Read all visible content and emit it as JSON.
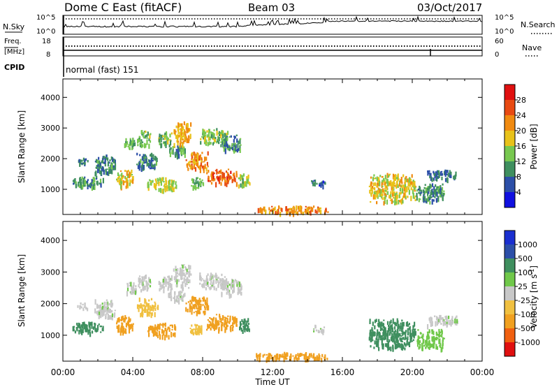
{
  "header": {
    "station": "Dome C East (fitACF)",
    "beam": "Beam 03",
    "date": "03/Oct/2017"
  },
  "top_panels": {
    "nsky_label": "N.Sky",
    "nsky_top": "10^5",
    "nsky_bottom": "10^0",
    "nsearch_label": "N.Search",
    "nsearch_top": "10^5",
    "nsearch_bottom": "10^0",
    "freq_label": "Freq.",
    "freq_unit": "[MHz]",
    "freq_top": "18",
    "freq_bottom": "8",
    "nave_label": "Nave",
    "nave_top": "60",
    "nave_bottom": "0",
    "cpid_label": "CPID",
    "cpid_value": "normal (fast) 151"
  },
  "colors": {
    "power": [
      "#1010e0",
      "#2c4fa8",
      "#3f8f5f",
      "#78c850",
      "#e8c21a",
      "#f08a10",
      "#e84a12",
      "#e01010"
    ],
    "velocity": [
      "#e01010",
      "#f06010",
      "#f0a020",
      "#f0c040",
      "#c8c8c8",
      "#70c84a",
      "#3f8f5f",
      "#2c4fa8",
      "#1a2fd0"
    ]
  },
  "chart_data": [
    {
      "type": "heatmap",
      "title": "",
      "xlabel": "",
      "ylabel": "Slant Range [km]",
      "xlim": [
        "00:00",
        "00:00"
      ],
      "xticks": [
        "00:00",
        "04:00",
        "08:00",
        "12:00",
        "16:00",
        "20:00",
        "00:00"
      ],
      "ylim": [
        180,
        4600
      ],
      "yticks": [
        1000,
        2000,
        3000,
        4000
      ],
      "colorbar": {
        "label": "Power [dB]",
        "ticks": [
          "4",
          "8",
          "12",
          "16",
          "20",
          "24",
          "28"
        ],
        "range": [
          0,
          32
        ]
      },
      "patches": [
        {
          "t": [
            0.8,
            1.4
          ],
          "r": [
            1850,
            2050
          ],
          "v": 7
        },
        {
          "t": [
            0.5,
            2.3
          ],
          "r": [
            1100,
            1450
          ],
          "v": 10
        },
        {
          "t": [
            1.8,
            3.0
          ],
          "r": [
            1550,
            2150
          ],
          "v": 9
        },
        {
          "t": [
            3.0,
            4.0
          ],
          "r": [
            1100,
            1650
          ],
          "v": 18
        },
        {
          "t": [
            3.5,
            4.2
          ],
          "r": [
            2350,
            2700
          ],
          "v": 12
        },
        {
          "t": [
            4.2,
            5.0
          ],
          "r": [
            2450,
            2950
          ],
          "v": 13
        },
        {
          "t": [
            4.2,
            5.4
          ],
          "r": [
            1700,
            2200
          ],
          "v": 9
        },
        {
          "t": [
            4.8,
            6.5
          ],
          "r": [
            1000,
            1400
          ],
          "v": 16
        },
        {
          "t": [
            5.4,
            6.2
          ],
          "r": [
            2450,
            2900
          ],
          "v": 14
        },
        {
          "t": [
            6.0,
            7.0
          ],
          "r": [
            2100,
            2450
          ],
          "v": 11
        },
        {
          "t": [
            6.3,
            7.3
          ],
          "r": [
            2500,
            3250
          ],
          "v": 20
        },
        {
          "t": [
            7.0,
            8.3
          ],
          "r": [
            1700,
            2250
          ],
          "v": 22
        },
        {
          "t": [
            7.2,
            8.0
          ],
          "r": [
            1050,
            1400
          ],
          "v": 12
        },
        {
          "t": [
            7.8,
            9.4
          ],
          "r": [
            2500,
            3000
          ],
          "v": 14
        },
        {
          "t": [
            8.2,
            10.0
          ],
          "r": [
            1200,
            1700
          ],
          "v": 25
        },
        {
          "t": [
            9.0,
            10.2
          ],
          "r": [
            2300,
            2800
          ],
          "v": 10
        },
        {
          "t": [
            10.0,
            10.7
          ],
          "r": [
            1150,
            1550
          ],
          "v": 15
        },
        {
          "t": [
            11.0,
            15.2
          ],
          "r": [
            260,
            480
          ],
          "v": 22
        },
        {
          "t": [
            14.2,
            15.0
          ],
          "r": [
            1150,
            1350
          ],
          "v": 7
        },
        {
          "t": [
            17.5,
            20.2
          ],
          "r": [
            600,
            1550
          ],
          "v": 18
        },
        {
          "t": [
            20.2,
            21.8
          ],
          "r": [
            600,
            1200
          ],
          "v": 10
        },
        {
          "t": [
            20.8,
            22.6
          ],
          "r": [
            1350,
            1650
          ],
          "v": 8
        }
      ]
    },
    {
      "type": "heatmap",
      "title": "",
      "xlabel": "Time UT",
      "ylabel": "Slant Range [km]",
      "xlim": [
        "00:00",
        "00:00"
      ],
      "xticks": [
        "00:00",
        "04:00",
        "08:00",
        "12:00",
        "16:00",
        "20:00",
        "00:00"
      ],
      "ylim": [
        180,
        4600
      ],
      "yticks": [
        1000,
        2000,
        3000,
        4000
      ],
      "colorbar": {
        "label": "Velocity [m s^-1]",
        "ticks": [
          "1000",
          "500",
          "100",
          "25",
          "-25",
          "-100",
          "-500",
          "-1000"
        ]
      },
      "patches": [
        {
          "t": [
            0.8,
            1.4
          ],
          "r": [
            1850,
            2050
          ],
          "v": 10
        },
        {
          "t": [
            0.5,
            2.3
          ],
          "r": [
            1100,
            1450
          ],
          "v": 150
        },
        {
          "t": [
            1.8,
            3.0
          ],
          "r": [
            1550,
            2150
          ],
          "v": 10
        },
        {
          "t": [
            3.0,
            4.0
          ],
          "r": [
            1100,
            1650
          ],
          "v": -150
        },
        {
          "t": [
            3.5,
            4.2
          ],
          "r": [
            2350,
            2700
          ],
          "v": 10
        },
        {
          "t": [
            4.2,
            5.0
          ],
          "r": [
            2450,
            2950
          ],
          "v": 10
        },
        {
          "t": [
            4.2,
            5.4
          ],
          "r": [
            1700,
            2200
          ],
          "v": -60
        },
        {
          "t": [
            4.8,
            6.5
          ],
          "r": [
            1000,
            1400
          ],
          "v": -250
        },
        {
          "t": [
            5.4,
            6.2
          ],
          "r": [
            2450,
            2900
          ],
          "v": 10
        },
        {
          "t": [
            6.0,
            7.0
          ],
          "r": [
            2100,
            2450
          ],
          "v": 10
        },
        {
          "t": [
            6.3,
            7.3
          ],
          "r": [
            2500,
            3250
          ],
          "v": 10
        },
        {
          "t": [
            7.0,
            8.3
          ],
          "r": [
            1700,
            2250
          ],
          "v": -250
        },
        {
          "t": [
            7.2,
            8.0
          ],
          "r": [
            1050,
            1400
          ],
          "v": -60
        },
        {
          "t": [
            7.8,
            9.4
          ],
          "r": [
            2500,
            3000
          ],
          "v": 10
        },
        {
          "t": [
            8.2,
            10.0
          ],
          "r": [
            1200,
            1700
          ],
          "v": -250
        },
        {
          "t": [
            9.0,
            10.2
          ],
          "r": [
            2300,
            2800
          ],
          "v": 10
        },
        {
          "t": [
            10.0,
            10.7
          ],
          "r": [
            1150,
            1550
          ],
          "v": 300
        },
        {
          "t": [
            11.0,
            15.2
          ],
          "r": [
            260,
            480
          ],
          "v": -150
        },
        {
          "t": [
            14.2,
            15.0
          ],
          "r": [
            1150,
            1350
          ],
          "v": 10
        },
        {
          "t": [
            17.5,
            20.2
          ],
          "r": [
            600,
            1550
          ],
          "v": 300
        },
        {
          "t": [
            20.2,
            21.8
          ],
          "r": [
            600,
            1200
          ],
          "v": 60
        },
        {
          "t": [
            20.8,
            22.6
          ],
          "r": [
            1350,
            1650
          ],
          "v": 10
        }
      ]
    }
  ]
}
